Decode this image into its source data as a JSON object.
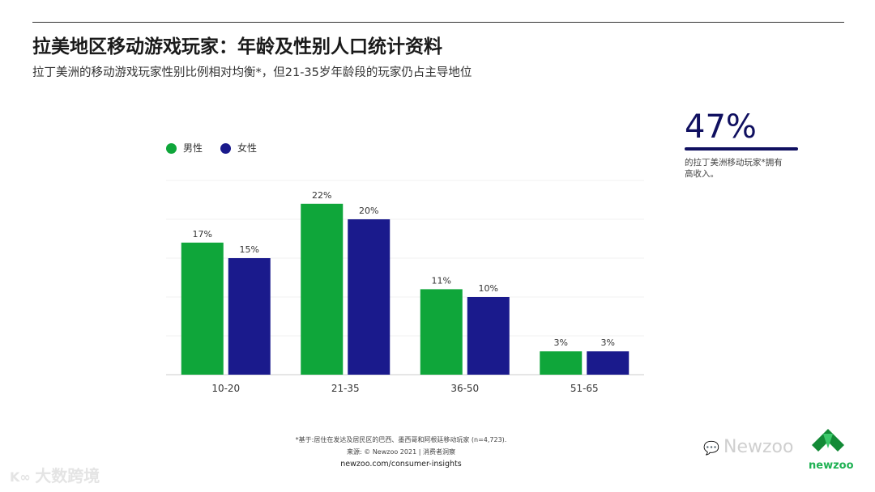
{
  "header": {
    "title": "拉美地区移动游戏玩家：年龄及性别人口统计资料",
    "subtitle": "拉丁美洲的移动游戏玩家性别比例相对均衡*，但21-35岁年龄段的玩家仍占主导地位"
  },
  "stat": {
    "value": "47%",
    "description": "的拉丁美洲移动玩家*拥有高收入。",
    "color": "#101060"
  },
  "footnote": {
    "line1": "*基于:居住在发达及居民区的巴西、墨西哥和阿根廷移动玩家 (n=4,723).",
    "line2": "来源: © Newzoo 2021 | 消费者洞察",
    "line3": "newzoo.com/consumer-insights"
  },
  "watermarks": {
    "left": "大数跨境",
    "right": "Newzoo",
    "logo": "newzoo"
  },
  "chart_data": {
    "type": "bar",
    "categories": [
      "10-20",
      "21-35",
      "36-50",
      "51-65"
    ],
    "series": [
      {
        "name": "男性",
        "values": [
          17,
          22,
          11,
          3
        ],
        "labels": [
          "17%",
          "22%",
          "11%",
          "3%"
        ],
        "color": "#0fa63a"
      },
      {
        "name": "女性",
        "values": [
          15,
          20,
          10,
          3
        ],
        "labels": [
          "15%",
          "20%",
          "10%",
          "3%"
        ],
        "color": "#1a1a8c"
      }
    ],
    "ylim": [
      0,
      25
    ],
    "grid": true,
    "legend": "top-left"
  }
}
